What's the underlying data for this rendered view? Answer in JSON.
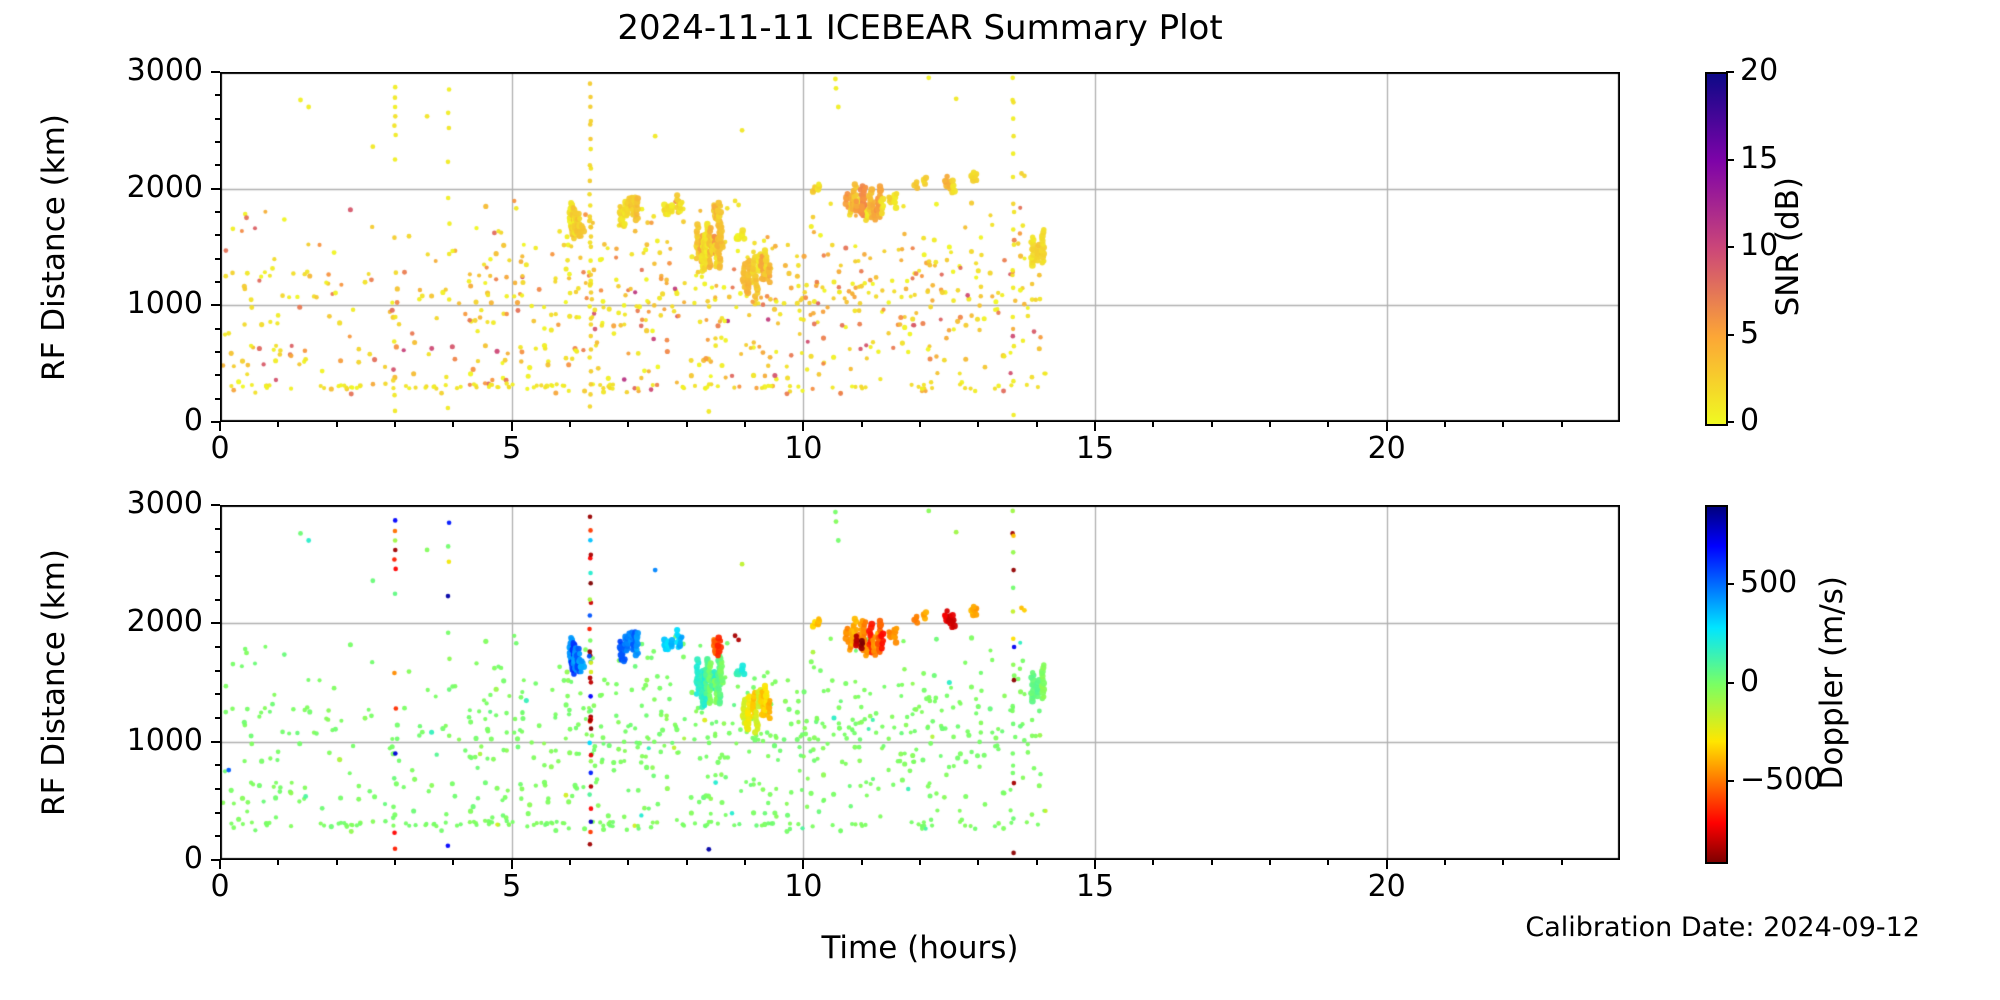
{
  "chart_data": {
    "type": "scatter",
    "title": "2024-11-11 ICEBEAR Summary Plot",
    "annotation": "Calibration Date: 2024-09-12",
    "x_axis": {
      "label": "Time (hours)",
      "min": 0,
      "max": 24,
      "major_ticks": [
        0,
        5,
        10,
        15,
        20
      ],
      "major_tick_labels": [
        "0",
        "5",
        "10",
        "15",
        "20"
      ],
      "minor_step": 1,
      "grid": true
    },
    "y_axis": {
      "label": "RF Distance (km)",
      "min": 0,
      "max": 3000,
      "major_ticks": [
        0,
        1000,
        2000,
        3000
      ],
      "major_tick_labels": [
        "0",
        "1000",
        "2000",
        "3000"
      ],
      "minor_step": 200,
      "grid": true
    },
    "panels": [
      {
        "id": "snr",
        "colorbar": {
          "label": "SNR (dB)",
          "vmin": 0,
          "vmax": 20,
          "cmap": "plasma_r",
          "ticks": [
            {
              "v": 0,
              "label": "0"
            },
            {
              "v": 5,
              "label": "5"
            },
            {
              "v": 10,
              "label": "10"
            },
            {
              "v": 15,
              "label": "15"
            },
            {
              "v": 20,
              "label": "20"
            }
          ]
        }
      },
      {
        "id": "doppler",
        "colorbar": {
          "label": "Doppler (m/s)",
          "vmin": -900,
          "vmax": 900,
          "cmap": "jet_r",
          "ticks": [
            {
              "v": 500,
              "label": "500"
            },
            {
              "v": 0,
              "label": "0"
            },
            {
              "v": -500,
              "label": "−500"
            }
          ]
        }
      }
    ],
    "colors": {
      "background": "#ffffff",
      "grid": "#b0b0b0",
      "spine": "#000000",
      "plasma_r_stops": [
        [
          0,
          [
            13,
            8,
            135
          ]
        ],
        [
          0.25,
          [
            126,
            3,
            168
          ]
        ],
        [
          0.5,
          [
            204,
            71,
            120
          ]
        ],
        [
          0.75,
          [
            248,
            148,
            65
          ]
        ],
        [
          1,
          [
            240,
            249,
            33
          ]
        ]
      ],
      "jet_r_stops": [
        [
          0,
          [
            127,
            0,
            0
          ]
        ],
        [
          0.11,
          [
            255,
            0,
            0
          ]
        ],
        [
          0.34,
          [
            255,
            230,
            0
          ]
        ],
        [
          0.5,
          [
            122,
            255,
            99
          ]
        ],
        [
          0.66,
          [
            0,
            229,
            255
          ]
        ],
        [
          0.89,
          [
            0,
            0,
            255
          ]
        ],
        [
          1,
          [
            0,
            0,
            127
          ]
        ]
      ]
    },
    "points_model": {
      "seed": 20241111,
      "data_t_max": 14.2,
      "baseline": {
        "count": 720,
        "t_range": [
          0.05,
          14.2
        ],
        "km_range": [
          240,
          1900
        ],
        "snr_range": [
          0,
          11.5
        ],
        "doppler_sigma": 38,
        "doppler_outlier_range": [
          -210,
          210
        ]
      },
      "row300": {
        "count": 90,
        "t_range": [
          0.1,
          14.1
        ],
        "km_range": [
          283,
          323
        ],
        "snr_range": [
          0,
          1.8
        ],
        "doppler_range": [
          -25,
          25
        ]
      },
      "stripes": [
        {
          "t": 3.0,
          "dots": [
            {
              "km": 2870,
              "dop": 700,
              "snr": 0.6
            },
            {
              "km": 2780,
              "dop": -500,
              "snr": 0.8
            },
            {
              "km": 2700,
              "dop": -80,
              "snr": 0.5
            },
            {
              "km": 2620,
              "dop": -850,
              "snr": 1.2
            },
            {
              "km": 2540,
              "dop": -650,
              "snr": 1.0
            },
            {
              "km": 2460,
              "dop": -700,
              "snr": 0.7
            },
            {
              "km": 2250,
              "dop": 60,
              "snr": 0.5
            },
            {
              "km": 1580,
              "dop": -450,
              "snr": 2.2
            },
            {
              "km": 1280,
              "dop": -620,
              "snr": 1.5
            },
            {
              "km": 900,
              "dop": 760,
              "snr": 1.0
            },
            {
              "km": 690,
              "dop": 40,
              "snr": 0.6
            },
            {
              "km": 230,
              "dop": -700,
              "snr": 0.8
            },
            {
              "km": 95,
              "dop": -650,
              "snr": 0.8
            }
          ]
        },
        {
          "t": 3.92,
          "dots": [
            {
              "km": 2850,
              "dop": 660,
              "snr": 0.5
            },
            {
              "km": 2650,
              "dop": 20,
              "snr": 0.6
            },
            {
              "km": 2520,
              "dop": -260,
              "snr": 0.9
            },
            {
              "km": 2230,
              "dop": 840,
              "snr": 0.7
            },
            {
              "km": 1920,
              "dop": 10,
              "snr": 0.5
            },
            {
              "km": 1700,
              "dop": -40,
              "snr": 0.5
            },
            {
              "km": 1440,
              "dop": 40,
              "snr": 0.8
            },
            {
              "km": 1050,
              "dop": -20,
              "snr": 0.6
            },
            {
              "km": 120,
              "dop": 700,
              "snr": 0.7
            }
          ]
        },
        {
          "t": 6.35,
          "gen": {
            "count": 30,
            "km_min": 130,
            "km_max": 2950,
            "extra_mid": 7,
            "mid_km": [
              1100,
              1780
            ],
            "snr_range": [
              0.4,
              2.6
            ],
            "dop_pattern": [
              -850,
              -600,
              800,
              -700,
              100,
              -820,
              650,
              -50,
              -750,
              300,
              -880,
              -600,
              50,
              700,
              -800,
              -200,
              400,
              -850,
              0,
              -650,
              550,
              -780,
              -100,
              -900,
              200,
              -700,
              -830,
              350,
              -600,
              -860
            ]
          }
        },
        {
          "t": 13.6,
          "dots": [
            {
              "km": 2950,
              "dop": -80,
              "snr": 0.5
            },
            {
              "km": 2760,
              "dop": -850,
              "snr": 0.8
            },
            {
              "km": 2740,
              "dop": -350,
              "snr": 1.2
            },
            {
              "km": 2600,
              "dop": -60,
              "snr": 0.5
            },
            {
              "km": 2450,
              "dop": -870,
              "snr": 0.9
            },
            {
              "km": 2300,
              "dop": 20,
              "snr": 0.5
            },
            {
              "km": 2100,
              "dop": -160,
              "snr": 0.7
            },
            {
              "km": 1870,
              "dop": -300,
              "snr": 1.8
            },
            {
              "km": 1800,
              "dop": 720,
              "snr": 1.0
            },
            {
              "km": 1650,
              "dop": -40,
              "snr": 0.5
            },
            {
              "km": 1520,
              "dop": -880,
              "snr": 0.8
            },
            {
              "km": 1300,
              "dop": 10,
              "snr": 0.5
            },
            {
              "km": 1150,
              "dop": 30,
              "snr": 0.6
            },
            {
              "km": 900,
              "dop": 10,
              "snr": 0.5
            },
            {
              "km": 650,
              "dop": -840,
              "snr": 0.7
            },
            {
              "km": 350,
              "dop": 30,
              "snr": 0.5
            },
            {
              "km": 60,
              "dop": -880,
              "snr": 0.6
            }
          ]
        }
      ],
      "clusters": [
        {
          "t": [
            6.0,
            6.22
          ],
          "km": [
            1560,
            1900
          ],
          "streaks": 7,
          "snr": [
            0.5,
            3.0
          ],
          "dop": [
            400,
            650
          ]
        },
        {
          "t": [
            6.85,
            7.18
          ],
          "km": [
            1650,
            1950
          ],
          "streaks": 7,
          "snr": [
            0.5,
            3.0
          ],
          "dop": [
            420,
            620
          ]
        },
        {
          "t": [
            7.58,
            7.95
          ],
          "km": [
            1760,
            1950
          ],
          "streaks": 5,
          "snr": [
            0.5,
            2.5
          ],
          "dop": [
            300,
            450
          ]
        },
        {
          "t": [
            8.18,
            8.62
          ],
          "km": [
            1250,
            1760
          ],
          "streaks": 11,
          "snr": [
            0.5,
            5.0
          ],
          "dop": [
            -20,
            270
          ]
        },
        {
          "t": [
            8.44,
            8.6
          ],
          "km": [
            1700,
            1890
          ],
          "streaks": 3,
          "snr": [
            1.0,
            4.0
          ],
          "dop": [
            -630,
            -500
          ]
        },
        {
          "t": [
            8.86,
            9.0
          ],
          "km": [
            1550,
            1660
          ],
          "streaks": 2,
          "snr": [
            0.5,
            2.0
          ],
          "dop": [
            150,
            260
          ]
        },
        {
          "t": [
            8.95,
            9.45
          ],
          "km": [
            1050,
            1500
          ],
          "streaks": 9,
          "snr": [
            0.5,
            4.0
          ],
          "dop": [
            -420,
            -150
          ]
        },
        {
          "t": [
            10.15,
            10.3
          ],
          "km": [
            1950,
            2130
          ],
          "streaks": 2,
          "snr": [
            1.0,
            3.0
          ],
          "dop": [
            -420,
            -260
          ]
        },
        {
          "t": [
            10.72,
            11.4
          ],
          "km": [
            1680,
            2060
          ],
          "streaks": 13,
          "snr": [
            0.5,
            6.0
          ],
          "dop": [
            -720,
            -380
          ]
        },
        {
          "t": [
            10.85,
            11.1
          ],
          "km": [
            1750,
            1980
          ],
          "streaks": 2,
          "snr": [
            4.0,
            7.0
          ],
          "dop": [
            -880,
            -780
          ]
        },
        {
          "t": [
            11.45,
            11.6
          ],
          "km": [
            1800,
            1980
          ],
          "streaks": 2,
          "snr": [
            0.5,
            2.0
          ],
          "dop": [
            -500,
            -350
          ]
        },
        {
          "t": [
            11.9,
            12.12
          ],
          "km": [
            1980,
            2120
          ],
          "streaks": 2,
          "snr": [
            1.0,
            3.0
          ],
          "dop": [
            -480,
            -320
          ]
        },
        {
          "t": [
            12.42,
            12.62
          ],
          "km": [
            1880,
            2120
          ],
          "streaks": 3,
          "snr": [
            1.0,
            4.0
          ],
          "dop": [
            -890,
            -720
          ]
        },
        {
          "t": [
            12.85,
            13.0
          ],
          "km": [
            2030,
            2160
          ],
          "streaks": 2,
          "snr": [
            1.0,
            3.0
          ],
          "dop": [
            -450,
            -300
          ]
        },
        {
          "t": [
            13.9,
            14.15
          ],
          "km": [
            1300,
            1680
          ],
          "streaks": 3,
          "snr": [
            0.5,
            2.5
          ],
          "dop": [
            -60,
            80
          ]
        }
      ],
      "singles": [
        {
          "t": 1.38,
          "km": 2760,
          "snr": 0.5,
          "dop": 30
        },
        {
          "t": 1.52,
          "km": 2700,
          "snr": 0.6,
          "dop": 190
        },
        {
          "t": 2.62,
          "km": 2360,
          "snr": 0.8,
          "dop": 40
        },
        {
          "t": 3.55,
          "km": 2620,
          "snr": 1.0,
          "dop": -20
        },
        {
          "t": 7.46,
          "km": 2450,
          "snr": 0.8,
          "dop": 460
        },
        {
          "t": 8.83,
          "km": 1895,
          "snr": 1.2,
          "dop": -840
        },
        {
          "t": 8.89,
          "km": 1860,
          "snr": 1.0,
          "dop": -820
        },
        {
          "t": 8.95,
          "km": 2500,
          "snr": 0.9,
          "dop": -150
        },
        {
          "t": 10.55,
          "km": 2940,
          "snr": 0.6,
          "dop": 10
        },
        {
          "t": 10.56,
          "km": 2860,
          "snr": 0.5,
          "dop": -20
        },
        {
          "t": 10.6,
          "km": 2700,
          "snr": 0.5,
          "dop": 15
        },
        {
          "t": 12.15,
          "km": 2950,
          "snr": 0.5,
          "dop": -30
        },
        {
          "t": 12.62,
          "km": 2770,
          "snr": 0.8,
          "dop": -80
        },
        {
          "t": 13.74,
          "km": 2130,
          "snr": 2.0,
          "dop": -360
        },
        {
          "t": 13.79,
          "km": 2110,
          "snr": 1.8,
          "dop": -330
        },
        {
          "t": 0.15,
          "km": 760,
          "snr": 1.0,
          "dop": 540
        },
        {
          "t": 8.38,
          "km": 90,
          "snr": 0.8,
          "dop": 840
        }
      ]
    }
  }
}
